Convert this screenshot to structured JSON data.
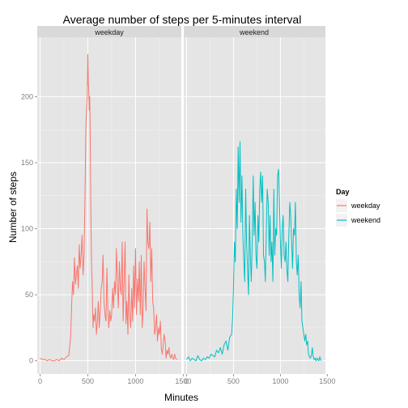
{
  "chart_data": {
    "type": "line",
    "title": "Average number of steps per 5-minutes interval",
    "xlabel": "Minutes",
    "ylabel": "Number of steps",
    "facets": [
      "weekday",
      "weekend"
    ],
    "xlim": [
      -30,
      1480
    ],
    "ylim": [
      -10,
      245
    ],
    "x_ticks": [
      0,
      500,
      1000,
      1500
    ],
    "y_ticks": [
      0,
      50,
      100,
      150,
      200
    ],
    "grid": true,
    "legend": {
      "title": "Day",
      "position": "right",
      "entries": [
        "weekday",
        "weekend"
      ]
    },
    "series": [
      {
        "name": "weekday",
        "color": "#F8766D",
        "x": [
          0,
          25,
          50,
          75,
          100,
          125,
          150,
          175,
          200,
          225,
          250,
          275,
          300,
          320,
          330,
          340,
          350,
          360,
          370,
          380,
          390,
          400,
          410,
          420,
          430,
          440,
          450,
          460,
          470,
          480,
          490,
          495,
          500,
          505,
          510,
          515,
          520,
          525,
          530,
          535,
          540,
          545,
          550,
          555,
          560,
          570,
          580,
          590,
          600,
          610,
          620,
          630,
          640,
          650,
          660,
          670,
          680,
          690,
          700,
          710,
          720,
          730,
          740,
          750,
          760,
          770,
          780,
          790,
          800,
          810,
          820,
          830,
          840,
          850,
          860,
          870,
          880,
          890,
          900,
          910,
          920,
          930,
          940,
          950,
          960,
          970,
          980,
          990,
          1000,
          1010,
          1020,
          1030,
          1040,
          1050,
          1060,
          1070,
          1080,
          1090,
          1100,
          1110,
          1120,
          1130,
          1140,
          1150,
          1160,
          1170,
          1180,
          1190,
          1200,
          1210,
          1220,
          1230,
          1240,
          1250,
          1260,
          1270,
          1280,
          1290,
          1300,
          1310,
          1320,
          1330,
          1340,
          1350,
          1360,
          1370,
          1380,
          1390,
          1400,
          1410,
          1420,
          1435
        ],
        "values": [
          2,
          1,
          1,
          0,
          1,
          0,
          0,
          1,
          0,
          2,
          1,
          3,
          4,
          18,
          40,
          60,
          50,
          78,
          58,
          65,
          72,
          55,
          88,
          70,
          80,
          95,
          65,
          80,
          120,
          178,
          195,
          200,
          232,
          210,
          205,
          190,
          200,
          175,
          130,
          95,
          72,
          60,
          40,
          25,
          35,
          30,
          40,
          20,
          30,
          45,
          25,
          38,
          55,
          60,
          80,
          45,
          35,
          30,
          70,
          40,
          25,
          38,
          30,
          35,
          55,
          40,
          60,
          50,
          85,
          60,
          40,
          75,
          55,
          50,
          90,
          30,
          60,
          90,
          28,
          45,
          20,
          65,
          35,
          25,
          55,
          30,
          72,
          40,
          85,
          35,
          62,
          45,
          75,
          35,
          80,
          25,
          40,
          75,
          55,
          38,
          115,
          90,
          85,
          105,
          60,
          85,
          45,
          40,
          20,
          25,
          35,
          15,
          25,
          20,
          30,
          10,
          5,
          12,
          20,
          15,
          2,
          8,
          5,
          10,
          3,
          2,
          5,
          2,
          1,
          5,
          2,
          1
        ]
      },
      {
        "name": "weekend",
        "color": "#00BFC4",
        "x": [
          0,
          20,
          40,
          60,
          80,
          100,
          120,
          140,
          160,
          180,
          200,
          220,
          240,
          260,
          280,
          300,
          320,
          340,
          360,
          380,
          400,
          420,
          440,
          460,
          480,
          490,
          500,
          510,
          520,
          530,
          540,
          550,
          560,
          570,
          580,
          590,
          600,
          610,
          620,
          630,
          640,
          650,
          660,
          670,
          680,
          690,
          700,
          710,
          720,
          730,
          740,
          750,
          760,
          770,
          780,
          790,
          800,
          810,
          820,
          830,
          840,
          850,
          860,
          870,
          880,
          890,
          900,
          910,
          920,
          930,
          940,
          950,
          960,
          970,
          980,
          990,
          1000,
          1010,
          1020,
          1030,
          1040,
          1050,
          1060,
          1070,
          1080,
          1090,
          1100,
          1110,
          1120,
          1130,
          1140,
          1150,
          1160,
          1170,
          1180,
          1190,
          1200,
          1210,
          1220,
          1230,
          1240,
          1250,
          1260,
          1270,
          1280,
          1290,
          1300,
          1310,
          1320,
          1330,
          1340,
          1350,
          1360,
          1370,
          1380,
          1390,
          1400,
          1410,
          1420,
          1435
        ],
        "values": [
          1,
          3,
          0,
          2,
          1,
          0,
          4,
          1,
          0,
          2,
          1,
          3,
          2,
          5,
          4,
          3,
          8,
          6,
          10,
          5,
          12,
          15,
          8,
          18,
          20,
          32,
          55,
          90,
          75,
          130,
          100,
          162,
          120,
          166,
          105,
          140,
          95,
          75,
          60,
          130,
          90,
          70,
          50,
          110,
          80,
          60,
          90,
          140,
          95,
          120,
          80,
          70,
          110,
          90,
          130,
          143,
          120,
          140,
          80,
          75,
          60,
          100,
          130,
          120,
          80,
          110,
          75,
          90,
          60,
          130,
          80,
          100,
          95,
          140,
          145,
          120,
          90,
          70,
          100,
          110,
          80,
          75,
          90,
          68,
          60,
          95,
          120,
          110,
          90,
          70,
          100,
          95,
          120,
          75,
          65,
          80,
          50,
          40,
          60,
          30,
          25,
          20,
          15,
          20,
          12,
          15,
          5,
          3,
          2,
          4,
          10,
          3,
          1,
          2,
          0,
          2,
          1,
          0,
          3,
          0
        ]
      }
    ]
  }
}
